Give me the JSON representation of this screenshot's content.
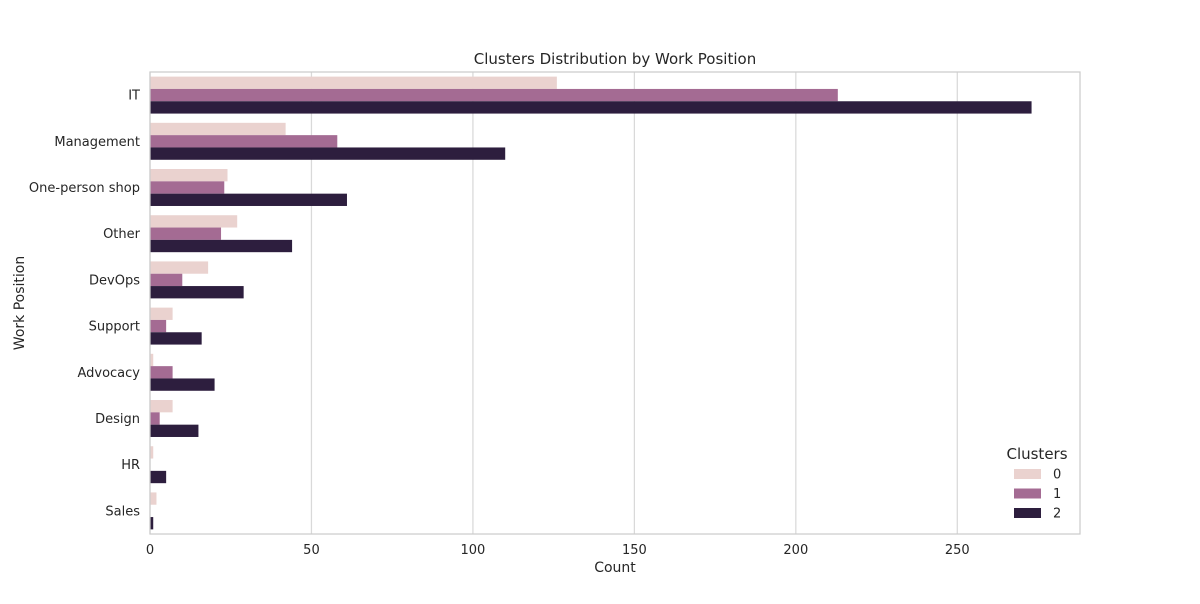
{
  "chart_data": {
    "type": "bar",
    "orientation": "horizontal",
    "title": "Clusters Distribution by Work Position",
    "xlabel": "Count",
    "ylabel": "Work Position",
    "xlim": [
      0,
      288
    ],
    "xticks": [
      0,
      50,
      100,
      150,
      200,
      250
    ],
    "grid": true,
    "legend": {
      "title": "Clusters",
      "placement": "bottom-right"
    },
    "categories": [
      "IT",
      "Management",
      "One-person shop",
      "Other",
      "DevOps",
      "Support",
      "Advocacy",
      "Design",
      "HR",
      "Sales"
    ],
    "series": [
      {
        "name": "0",
        "color": "#ead2cf",
        "values": [
          126,
          42,
          24,
          27,
          18,
          7,
          1,
          7,
          1,
          2
        ]
      },
      {
        "name": "1",
        "color": "#a46b93",
        "values": [
          213,
          58,
          23,
          22,
          10,
          5,
          7,
          3,
          0,
          0
        ]
      },
      {
        "name": "2",
        "color": "#2d1e3e",
        "values": [
          273,
          110,
          61,
          44,
          29,
          16,
          20,
          15,
          5,
          1
        ]
      }
    ]
  }
}
